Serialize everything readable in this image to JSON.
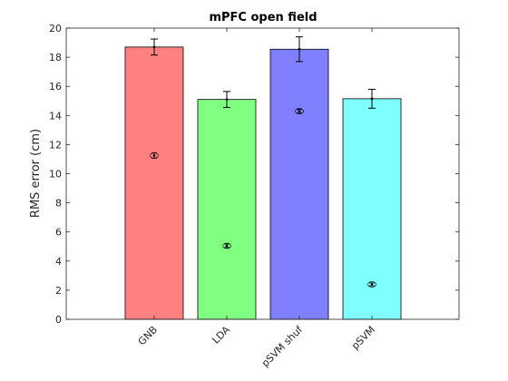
{
  "chart_data": {
    "type": "bar",
    "title": "mPFC open field",
    "xlabel": "",
    "ylabel": "RMS error (cm)",
    "ylim": [
      0,
      20
    ],
    "yticks": [
      0,
      2,
      4,
      6,
      8,
      10,
      12,
      14,
      16,
      18,
      20
    ],
    "categories": [
      "GNB",
      "LDA",
      "pSVM shuf",
      "pSVM"
    ],
    "bar_colors": [
      "#ff8080",
      "#80ff80",
      "#8080ff",
      "#80ffff"
    ],
    "series": [
      {
        "values": [
          18.7,
          15.1,
          18.55,
          15.15
        ],
        "errors": [
          0.55,
          0.55,
          0.85,
          0.65
        ]
      },
      {
        "values": [
          11.25,
          5.05,
          14.3,
          2.4
        ],
        "errors": [
          0.18,
          0.12,
          0.12,
          0.1
        ]
      }
    ],
    "grid": false,
    "legend": "none"
  }
}
